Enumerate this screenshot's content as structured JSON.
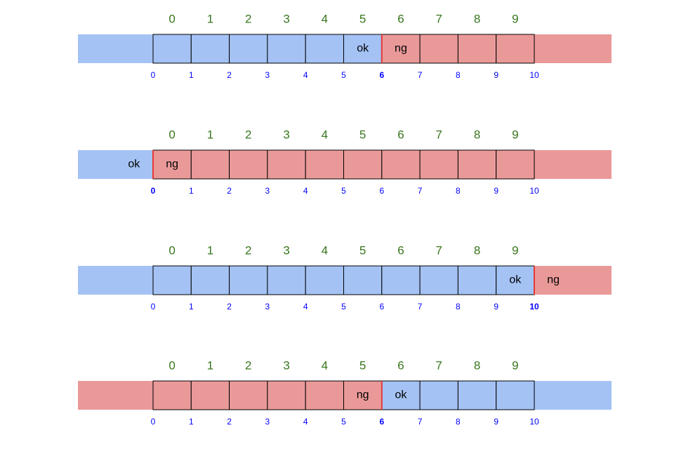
{
  "colors": {
    "ok": "#a4c2f4",
    "ng": "#ea9999"
  },
  "rows": [
    {
      "cell_indices": [
        "0",
        "1",
        "2",
        "3",
        "4",
        "5",
        "6",
        "7",
        "8",
        "9"
      ],
      "boundary_indices": [
        "0",
        "1",
        "2",
        "3",
        "4",
        "5",
        "6",
        "7",
        "8",
        "9",
        "10"
      ],
      "split": 6,
      "left": "ok",
      "right": "ng"
    },
    {
      "cell_indices": [
        "0",
        "1",
        "2",
        "3",
        "4",
        "5",
        "6",
        "7",
        "8",
        "9"
      ],
      "boundary_indices": [
        "0",
        "1",
        "2",
        "3",
        "4",
        "5",
        "6",
        "7",
        "8",
        "9",
        "10"
      ],
      "split": 0,
      "left": "ok",
      "right": "ng"
    },
    {
      "cell_indices": [
        "0",
        "1",
        "2",
        "3",
        "4",
        "5",
        "6",
        "7",
        "8",
        "9"
      ],
      "boundary_indices": [
        "0",
        "1",
        "2",
        "3",
        "4",
        "5",
        "6",
        "7",
        "8",
        "9",
        "10"
      ],
      "split": 10,
      "left": "ok",
      "right": "ng"
    },
    {
      "cell_indices": [
        "0",
        "1",
        "2",
        "3",
        "4",
        "5",
        "6",
        "7",
        "8",
        "9"
      ],
      "boundary_indices": [
        "0",
        "1",
        "2",
        "3",
        "4",
        "5",
        "6",
        "7",
        "8",
        "9",
        "10"
      ],
      "split": 6,
      "left": "ng",
      "right": "ok"
    }
  ]
}
